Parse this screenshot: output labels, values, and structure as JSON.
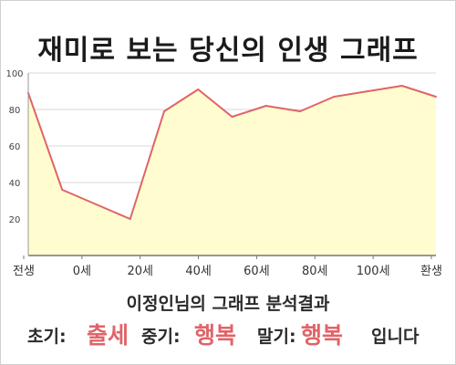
{
  "title": "재미로 보는 당신의 인생 그래프",
  "subtitle": "이정인님의 그래프 분석결과",
  "summary": {
    "early_label": "초기:",
    "early_value": "출세",
    "middle_label": "중기:",
    "middle_value": "행복",
    "late_label": "말기:",
    "late_value": "행복",
    "ending": "입니다"
  },
  "colors": {
    "line": "#e06468",
    "fill": "#fffdcf",
    "grid": "#d8d8d8",
    "highlight": "#e06468"
  },
  "chart_data": {
    "type": "area",
    "title": "재미로 보는 당신의 인생 그래프",
    "xlabel": "",
    "ylabel": "",
    "x_ticks": [
      "전생",
      "0세",
      "20세",
      "40세",
      "60세",
      "80세",
      "100세",
      "환생"
    ],
    "x": [
      "전생",
      "0세",
      "",
      "20세",
      "",
      "40세",
      "",
      "60세",
      "",
      "80세",
      "",
      "100세",
      "환생"
    ],
    "values": [
      89,
      36,
      28,
      20,
      79,
      91,
      76,
      82,
      79,
      87,
      90,
      93,
      87
    ],
    "ylim": [
      0,
      100
    ],
    "y_ticks": [
      20,
      40,
      60,
      80,
      100
    ],
    "grid": true
  }
}
